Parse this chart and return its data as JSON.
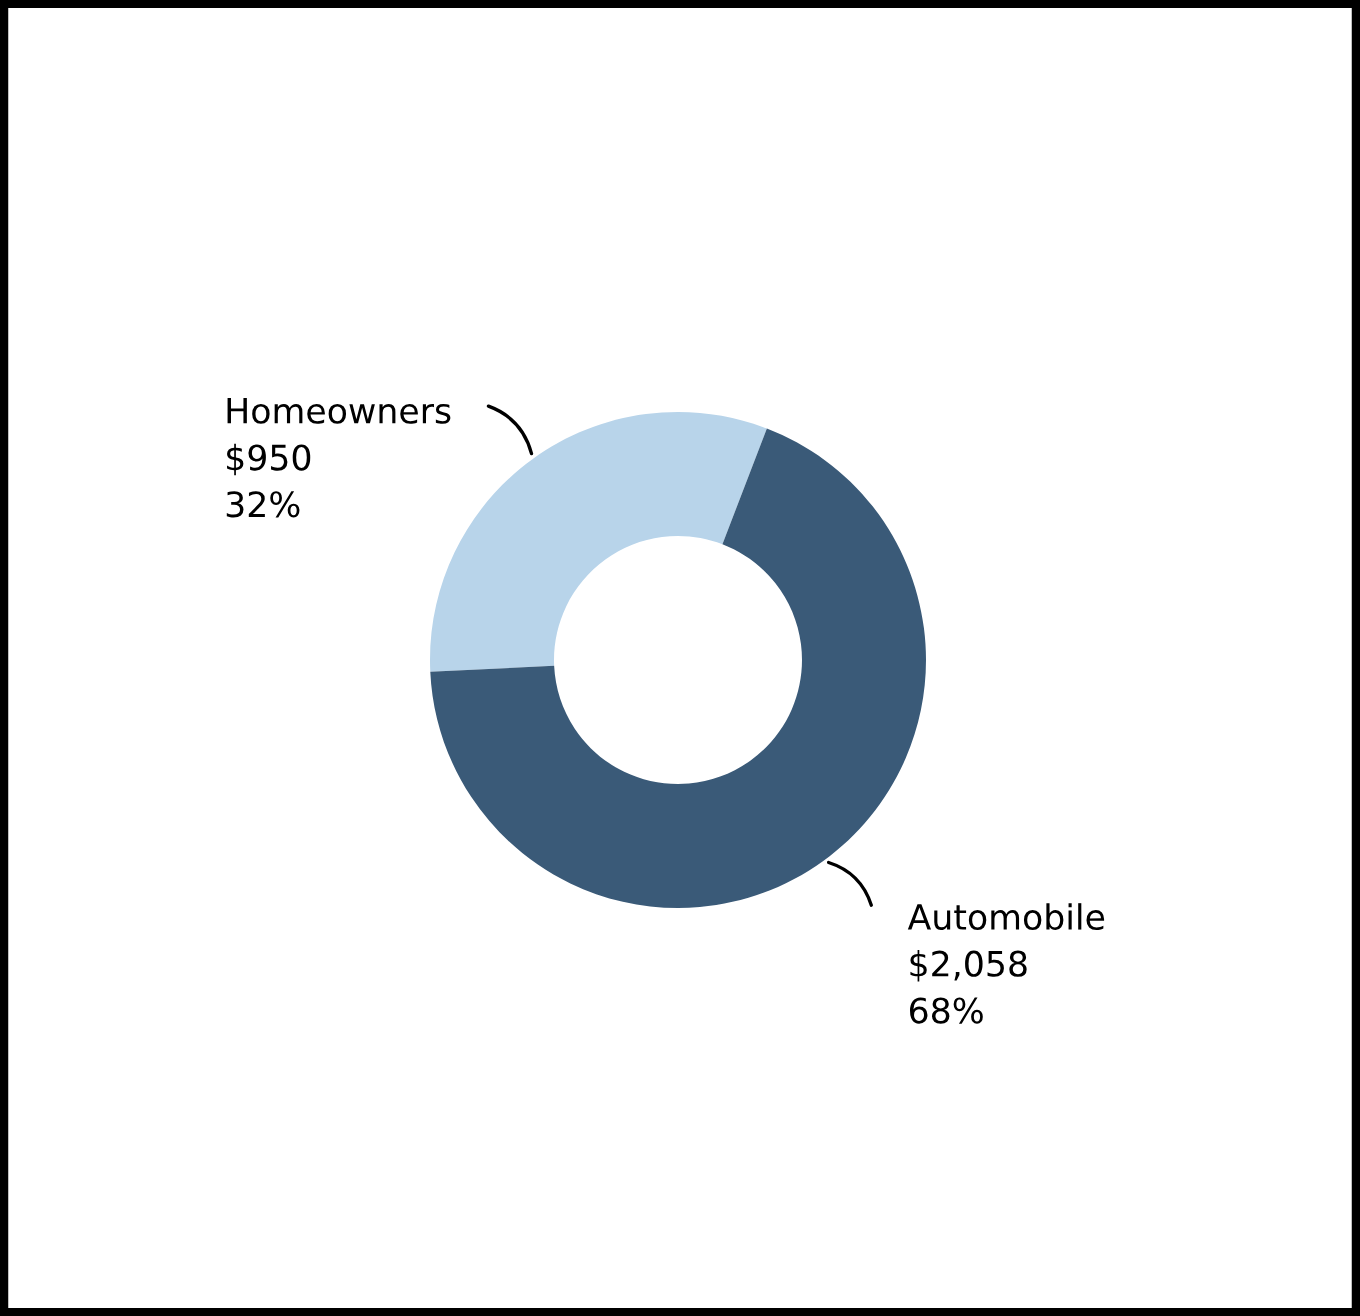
{
  "chart_data": {
    "type": "donut",
    "categories": [
      "Homeowners",
      "Automobile"
    ],
    "values": [
      950,
      2058
    ],
    "colors": [
      "#b8d4ea",
      "#3a5a78"
    ],
    "value_labels": [
      "$950\n32%",
      "$2,058\n68%"
    ],
    "legend": false
  }
}
